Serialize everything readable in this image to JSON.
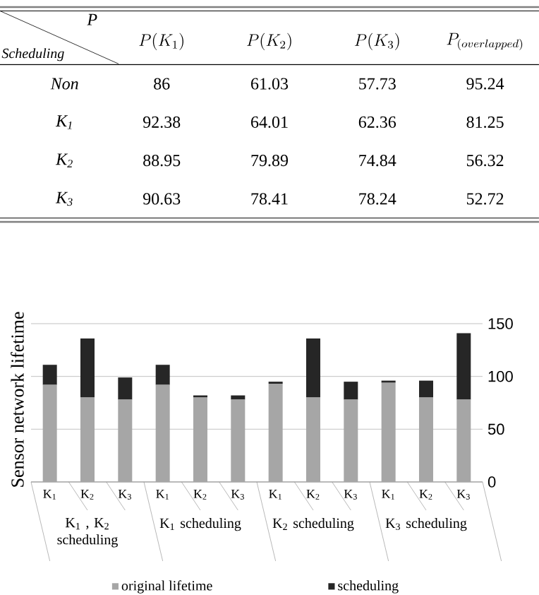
{
  "chart_data": [
    {
      "type": "heatmap",
      "xlabel": "P",
      "ylabel": "Scheduling",
      "categories": [
        "P(K_{1})",
        "P(K_{2})",
        "P(K_{3})",
        "P_{(overlapped)}"
      ],
      "y_categories": [
        "Non",
        "K$_{1}$",
        "K$_{2}$",
        "K$_{3}$"
      ],
      "cells": [
        [
          86,
          61.03,
          57.73,
          95.24
        ],
        [
          92.38,
          64.01,
          62.36,
          81.25
        ],
        [
          88.95,
          79.89,
          74.84,
          56.32
        ],
        [
          90.63,
          78.41,
          78.24,
          52.72
        ]
      ],
      "data_labels": true
    },
    {
      "type": "bar",
      "stacked": true,
      "ylabel": "Sensor network lifetime",
      "categories": [
        "K$_{1}$",
        "K$_{2}$",
        "K$_{3}$",
        "K$_{1}$",
        "K$_{2}$",
        "K$_{3}$",
        "K$_{1}$",
        "K$_{2}$",
        "K$_{3}$",
        "K$_{1}$",
        "K$_{2}$",
        "K$_{3}$"
      ],
      "series": [
        {
          "name": "original lifetime",
          "color": "#a6a6a6",
          "values": [
            92,
            80,
            78,
            92,
            80,
            78,
            93,
            80,
            78,
            94,
            80,
            78
          ]
        },
        {
          "name": "scheduling",
          "color": "#262626",
          "values": [
            19,
            56,
            21,
            19,
            2,
            4,
            2,
            56,
            17,
            2,
            16,
            63
          ]
        }
      ],
      "ylim": [
        0,
        150
      ],
      "yticks": [
        0,
        50,
        100,
        150
      ],
      "grid": "y",
      "legend": "bottom",
      "annotations": [
        "K$_{1}$ , K$_{2}$ scheduling",
        "K$_{1}$ scheduling",
        "K$_{2}$ scheduling",
        "K$_{3}$ scheduling"
      ]
    }
  ]
}
